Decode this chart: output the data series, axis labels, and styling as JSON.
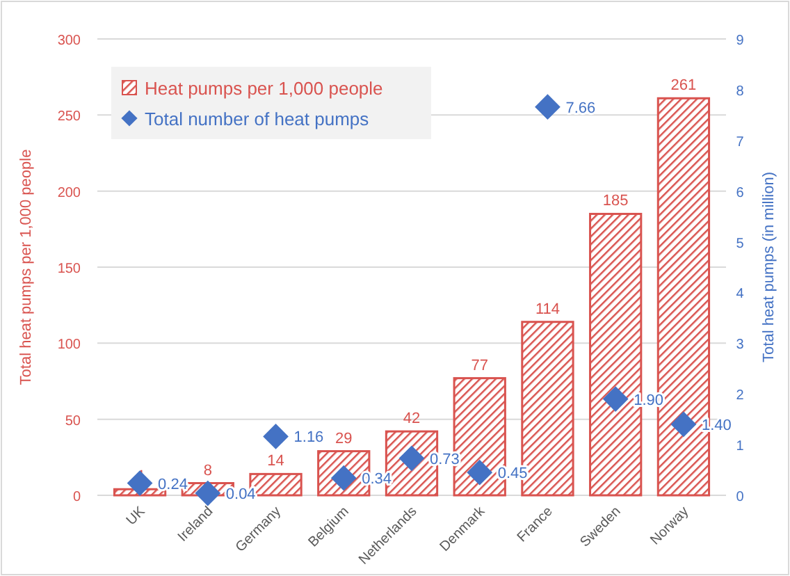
{
  "chart_data": {
    "type": "bar",
    "categories": [
      "UK",
      "Ireland",
      "Germany",
      "Belgium",
      "Netherlands",
      "Denmark",
      "France",
      "Sweden",
      "Norway"
    ],
    "ylabel": "Total heat pumps per 1,000 people",
    "y2label": "Total heat pumps (in million)",
    "series": [
      {
        "name": "Heat pumps per 1,000 people",
        "color": "#d9534f",
        "values": [
          4,
          8,
          14,
          29,
          42,
          77,
          114,
          185,
          261
        ]
      },
      {
        "name": "Total number of heat pumps",
        "type": "scatter",
        "axis": "y2",
        "color": "#4472c4",
        "values": [
          0.24,
          0.04,
          1.16,
          0.34,
          0.73,
          0.45,
          7.66,
          1.9,
          1.4
        ],
        "value_labels": [
          "0.24",
          "0.04",
          "1.16",
          "0.34",
          "0.73",
          "0.45",
          "7.66",
          "1.90",
          "1.40"
        ]
      }
    ],
    "data_labels": true,
    "marker": "diamond",
    "ylim": [
      0,
      300
    ],
    "yticks": [
      0,
      50,
      100,
      150,
      200,
      250,
      300
    ],
    "y2lim": [
      0,
      9
    ],
    "y2ticks": [
      0,
      1,
      2,
      3,
      4,
      5,
      6,
      7,
      8,
      9
    ],
    "grid": "y",
    "legend": "top left"
  }
}
